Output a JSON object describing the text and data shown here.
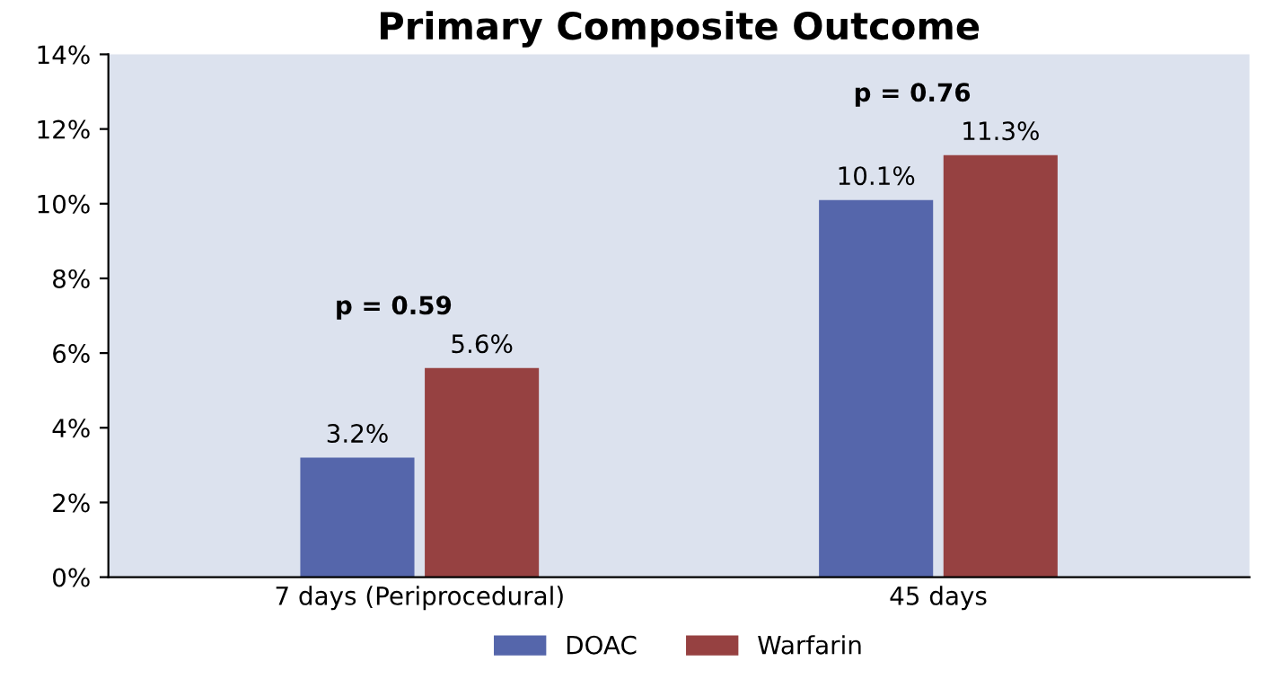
{
  "chart_data": {
    "type": "bar",
    "title": "Primary Composite Outcome",
    "categories": [
      "7 days (Periprocedural)",
      "45 days"
    ],
    "series": [
      {
        "name": "DOAC",
        "color": "#5566ab",
        "values": [
          3.2,
          10.1
        ]
      },
      {
        "name": "Warfarin",
        "color": "#964141",
        "values": [
          5.6,
          11.3
        ]
      }
    ],
    "ylim": [
      0,
      14
    ],
    "yticks": [
      {
        "value": 0,
        "label": "0%"
      },
      {
        "value": 2,
        "label": "2%"
      },
      {
        "value": 4,
        "label": "4%"
      },
      {
        "value": 6,
        "label": "6%"
      },
      {
        "value": 8,
        "label": "8%"
      },
      {
        "value": 10,
        "label": "10%"
      },
      {
        "value": 12,
        "label": "12%"
      },
      {
        "value": 14,
        "label": "14%"
      }
    ],
    "value_labels": [
      [
        "3.2%",
        "10.1%"
      ],
      [
        "5.6%",
        "11.3%"
      ]
    ],
    "annotations": [
      "p = 0.59",
      "p = 0.76"
    ],
    "grid": false,
    "legend": "bottom"
  }
}
